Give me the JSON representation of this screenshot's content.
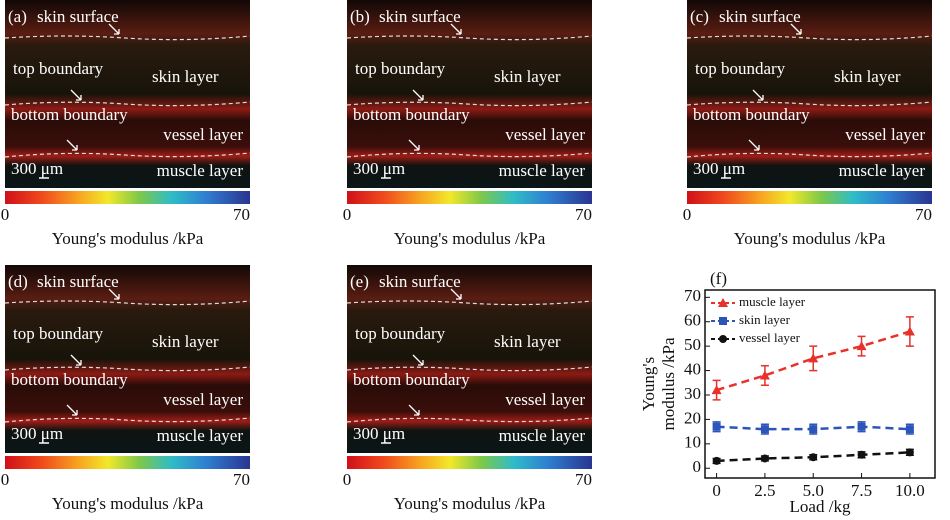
{
  "panels": [
    {
      "label": "(a)",
      "annotations": [
        "skin surface",
        "top boundary",
        "skin layer",
        "bottom boundary",
        "vessel layer",
        "300 μm",
        "muscle layer"
      ],
      "colorbar_ticks": [
        0,
        70
      ],
      "colorbar_label": "Young's modulus /kPa"
    },
    {
      "label": "(b)",
      "annotations": [
        "skin surface",
        "top boundary",
        "skin layer",
        "bottom boundary",
        "vessel layer",
        "300 μm",
        "muscle layer"
      ],
      "colorbar_ticks": [
        0,
        70
      ],
      "colorbar_label": "Young's modulus /kPa"
    },
    {
      "label": "(c)",
      "annotations": [
        "skin surface",
        "top boundary",
        "skin layer",
        "bottom boundary",
        "vessel layer",
        "300 μm",
        "muscle layer"
      ],
      "colorbar_ticks": [
        0,
        70
      ],
      "colorbar_label": "Young's modulus /kPa"
    },
    {
      "label": "(d)",
      "annotations": [
        "skin surface",
        "top boundary",
        "skin layer",
        "bottom boundary",
        "vessel layer",
        "300 μm",
        "muscle layer"
      ],
      "colorbar_ticks": [
        0,
        70
      ],
      "colorbar_label": "Young's modulus /kPa"
    },
    {
      "label": "(e)",
      "annotations": [
        "skin surface",
        "top boundary",
        "skin layer",
        "bottom boundary",
        "vessel layer",
        "300 μm",
        "muscle layer"
      ],
      "colorbar_ticks": [
        0,
        70
      ],
      "colorbar_label": "Young's modulus /kPa"
    }
  ],
  "chart_data": {
    "type": "line",
    "panel_label": "(f)",
    "xlabel": "Load /kg",
    "ylabel_lines": [
      "Young's",
      "modulus /kPa"
    ],
    "x": [
      0,
      2.5,
      5,
      7.5,
      10
    ],
    "xlim": [
      -0.6,
      11.3
    ],
    "xticks": [
      0,
      2.5,
      {
        "value": 5,
        "label": "5.0"
      },
      7.5,
      {
        "value": 10,
        "label": "10.0"
      }
    ],
    "ylim": [
      -4,
      73
    ],
    "yticks": [
      0,
      10,
      20,
      30,
      40,
      50,
      60,
      70
    ],
    "series": [
      {
        "name": "muscle layer",
        "color": "#e8312a",
        "marker": "triangle",
        "values": [
          32,
          38,
          45,
          50,
          56
        ],
        "errors": [
          4,
          4,
          5,
          4,
          6
        ]
      },
      {
        "name": "skin layer",
        "color": "#2b55b8",
        "marker": "square",
        "values": [
          17,
          16,
          16,
          17,
          16
        ],
        "errors": [
          2,
          2,
          2,
          2,
          2
        ]
      },
      {
        "name": "vessel layer",
        "color": "#111111",
        "marker": "circle",
        "values": [
          3,
          4,
          4.5,
          5.5,
          6.5
        ],
        "errors": [
          1,
          1,
          1,
          1.2,
          1.2
        ]
      }
    ]
  }
}
